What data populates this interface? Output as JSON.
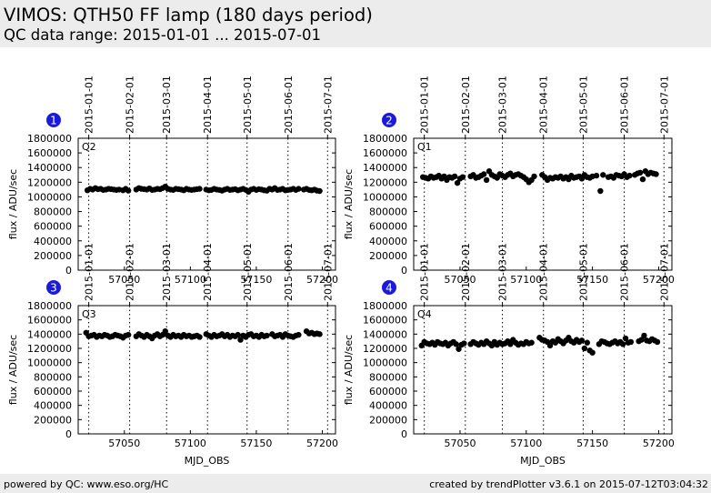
{
  "header": {
    "title": "VIMOS: QTH50 FF lamp (180 days period)",
    "subtitle": "QC data range: 2015-01-01 ... 2015-07-01"
  },
  "footer": {
    "left": "powered by QC: www.eso.org/HC",
    "right": "created by trendPlotter v3.6.1 on 2015-07-12T03:04:32"
  },
  "colors": {
    "badge": "#1a1adc",
    "points": "#000000",
    "header_bg": "#ececec"
  },
  "chart_data": [
    {
      "type": "scatter",
      "badge": "1",
      "quadrant_label": "Q2",
      "xlabel": "",
      "ylabel": "flux / ADU/sec",
      "xlim": [
        57015,
        57210
      ],
      "ylim": [
        0,
        1800000
      ],
      "x_ticks": [
        57050,
        57100,
        57150,
        57200
      ],
      "y_ticks": [
        0,
        200000,
        400000,
        600000,
        800000,
        1000000,
        1200000,
        1400000,
        1600000,
        1800000
      ],
      "date_marks": [
        {
          "label": "2015-01-01",
          "mjd": 57023
        },
        {
          "label": "2015-02-01",
          "mjd": 57054
        },
        {
          "label": "2015-03-01",
          "mjd": 57082
        },
        {
          "label": "2015-04-01",
          "mjd": 57113
        },
        {
          "label": "2015-05-01",
          "mjd": 57143
        },
        {
          "label": "2015-06-01",
          "mjd": 57174
        },
        {
          "label": "2015-07-01",
          "mjd": 57204
        }
      ],
      "series": [
        {
          "x": [
            57022,
            57024,
            57026,
            57028,
            57030,
            57032,
            57034,
            57036,
            57038,
            57040,
            57042,
            57044,
            57046,
            57049,
            57051,
            57053,
            57059,
            57061,
            57063,
            57065,
            57067,
            57069,
            57071,
            57073,
            57075,
            57077,
            57079,
            57081,
            57083,
            57085,
            57087,
            57089,
            57091,
            57093,
            57095,
            57097,
            57099,
            57101,
            57103,
            57105,
            57107,
            57112,
            57114,
            57116,
            57118,
            57120,
            57122,
            57124,
            57126,
            57128,
            57130,
            57132,
            57134,
            57136,
            57138,
            57140,
            57142,
            57144,
            57146,
            57148,
            57150,
            57152,
            57154,
            57156,
            57158,
            57160,
            57162,
            57164,
            57166,
            57168,
            57170,
            57172,
            57174,
            57176,
            57178,
            57180,
            57182,
            57186,
            57188,
            57190,
            57192,
            57194,
            57196,
            57198
          ],
          "y": [
            1090000,
            1110000,
            1100000,
            1120000,
            1105000,
            1110000,
            1095000,
            1100000,
            1110000,
            1105000,
            1100000,
            1095000,
            1100000,
            1090000,
            1110000,
            1085000,
            1100000,
            1120000,
            1110000,
            1105000,
            1100000,
            1115000,
            1095000,
            1100000,
            1110000,
            1105000,
            1120000,
            1140000,
            1110000,
            1100000,
            1095000,
            1110000,
            1105000,
            1100000,
            1090000,
            1110000,
            1100000,
            1095000,
            1100000,
            1105000,
            1110000,
            1100000,
            1090000,
            1095000,
            1110000,
            1100000,
            1095000,
            1085000,
            1100000,
            1110000,
            1095000,
            1100000,
            1105000,
            1090000,
            1100000,
            1110000,
            1095000,
            1070000,
            1100000,
            1110000,
            1095000,
            1105000,
            1100000,
            1090000,
            1085000,
            1110000,
            1100000,
            1120000,
            1095000,
            1100000,
            1110000,
            1090000,
            1095000,
            1100000,
            1110000,
            1095000,
            1110000,
            1100000,
            1110000,
            1095000,
            1090000,
            1100000,
            1085000,
            1080000
          ]
        }
      ]
    },
    {
      "type": "scatter",
      "badge": "2",
      "quadrant_label": "Q1",
      "xlabel": "",
      "ylabel": "flux / ADU/sec",
      "xlim": [
        57015,
        57210
      ],
      "ylim": [
        0,
        1800000
      ],
      "x_ticks": [
        57050,
        57100,
        57150,
        57200
      ],
      "y_ticks": [
        0,
        200000,
        400000,
        600000,
        800000,
        1000000,
        1200000,
        1400000,
        1600000,
        1800000
      ],
      "date_marks": [
        {
          "label": "2015-01-01",
          "mjd": 57023
        },
        {
          "label": "2015-02-01",
          "mjd": 57054
        },
        {
          "label": "2015-03-01",
          "mjd": 57082
        },
        {
          "label": "2015-04-01",
          "mjd": 57113
        },
        {
          "label": "2015-05-01",
          "mjd": 57143
        },
        {
          "label": "2015-06-01",
          "mjd": 57174
        },
        {
          "label": "2015-07-01",
          "mjd": 57204
        }
      ],
      "series": [
        {
          "x": [
            57022,
            57024,
            57026,
            57028,
            57030,
            57032,
            57034,
            57036,
            57038,
            57040,
            57042,
            57044,
            57046,
            57048,
            57050,
            57052,
            57058,
            57060,
            57062,
            57064,
            57066,
            57068,
            57070,
            57072,
            57074,
            57076,
            57078,
            57080,
            57082,
            57084,
            57086,
            57088,
            57090,
            57092,
            57094,
            57096,
            57098,
            57100,
            57102,
            57104,
            57106,
            57112,
            57114,
            57116,
            57118,
            57120,
            57122,
            57124,
            57126,
            57128,
            57130,
            57132,
            57134,
            57136,
            57138,
            57140,
            57142,
            57144,
            57146,
            57148,
            57150,
            57153,
            57156,
            57158,
            57162,
            57164,
            57166,
            57168,
            57170,
            57172,
            57174,
            57176,
            57178,
            57182,
            57184,
            57186,
            57188,
            57190,
            57192,
            57194,
            57196,
            57198
          ],
          "y": [
            1270000,
            1260000,
            1250000,
            1280000,
            1260000,
            1270000,
            1290000,
            1250000,
            1280000,
            1230000,
            1270000,
            1260000,
            1280000,
            1190000,
            1250000,
            1270000,
            1280000,
            1300000,
            1260000,
            1270000,
            1290000,
            1310000,
            1230000,
            1350000,
            1300000,
            1280000,
            1260000,
            1310000,
            1290000,
            1270000,
            1300000,
            1320000,
            1280000,
            1300000,
            1310000,
            1290000,
            1270000,
            1240000,
            1200000,
            1230000,
            1280000,
            1300000,
            1270000,
            1230000,
            1260000,
            1250000,
            1270000,
            1260000,
            1280000,
            1250000,
            1270000,
            1240000,
            1290000,
            1260000,
            1270000,
            1280000,
            1250000,
            1300000,
            1270000,
            1260000,
            1280000,
            1290000,
            1080000,
            1300000,
            1270000,
            1280000,
            1260000,
            1300000,
            1290000,
            1280000,
            1310000,
            1270000,
            1290000,
            1300000,
            1320000,
            1330000,
            1240000,
            1350000,
            1310000,
            1330000,
            1320000,
            1310000
          ]
        }
      ]
    },
    {
      "type": "scatter",
      "badge": "3",
      "quadrant_label": "Q3",
      "xlabel": "MJD_OBS",
      "ylabel": "flux / ADU/sec",
      "xlim": [
        57015,
        57210
      ],
      "ylim": [
        0,
        1800000
      ],
      "x_ticks": [
        57050,
        57100,
        57150,
        57200
      ],
      "y_ticks": [
        0,
        200000,
        400000,
        600000,
        800000,
        1000000,
        1200000,
        1400000,
        1600000,
        1800000
      ],
      "date_marks": [
        {
          "label": "2015-01-01",
          "mjd": 57023
        },
        {
          "label": "2015-02-01",
          "mjd": 57054
        },
        {
          "label": "2015-03-01",
          "mjd": 57082
        },
        {
          "label": "2015-04-01",
          "mjd": 57113
        },
        {
          "label": "2015-05-01",
          "mjd": 57143
        },
        {
          "label": "2015-06-01",
          "mjd": 57174
        },
        {
          "label": "2015-07-01",
          "mjd": 57204
        }
      ],
      "series": [
        {
          "x": [
            57021,
            57023,
            57025,
            57027,
            57029,
            57031,
            57033,
            57035,
            57037,
            57039,
            57041,
            57043,
            57045,
            57047,
            57049,
            57051,
            57053,
            57059,
            57061,
            57063,
            57065,
            57067,
            57069,
            57071,
            57073,
            57075,
            57077,
            57079,
            57081,
            57083,
            57085,
            57087,
            57089,
            57091,
            57093,
            57095,
            57097,
            57099,
            57101,
            57103,
            57105,
            57107,
            57112,
            57114,
            57116,
            57118,
            57120,
            57122,
            57124,
            57126,
            57128,
            57130,
            57132,
            57134,
            57136,
            57138,
            57140,
            57142,
            57144,
            57146,
            57148,
            57150,
            57152,
            57154,
            57156,
            57158,
            57162,
            57164,
            57166,
            57168,
            57170,
            57172,
            57174,
            57176,
            57178,
            57180,
            57182,
            57188,
            57190,
            57192,
            57194,
            57196,
            57198
          ],
          "y": [
            1420000,
            1370000,
            1380000,
            1390000,
            1360000,
            1380000,
            1370000,
            1390000,
            1380000,
            1360000,
            1370000,
            1390000,
            1380000,
            1370000,
            1350000,
            1380000,
            1390000,
            1370000,
            1400000,
            1380000,
            1360000,
            1390000,
            1370000,
            1340000,
            1380000,
            1400000,
            1370000,
            1390000,
            1440000,
            1380000,
            1360000,
            1390000,
            1370000,
            1380000,
            1360000,
            1390000,
            1370000,
            1380000,
            1360000,
            1370000,
            1380000,
            1360000,
            1400000,
            1380000,
            1360000,
            1390000,
            1370000,
            1380000,
            1400000,
            1370000,
            1390000,
            1360000,
            1380000,
            1370000,
            1390000,
            1320000,
            1380000,
            1360000,
            1390000,
            1400000,
            1370000,
            1380000,
            1360000,
            1390000,
            1370000,
            1380000,
            1400000,
            1370000,
            1380000,
            1390000,
            1360000,
            1400000,
            1380000,
            1370000,
            1360000,
            1380000,
            1390000,
            1440000,
            1410000,
            1420000,
            1400000,
            1410000,
            1400000
          ]
        }
      ]
    },
    {
      "type": "scatter",
      "badge": "4",
      "quadrant_label": "Q4",
      "xlabel": "MJD_OBS",
      "ylabel": "flux / ADU/sec",
      "xlim": [
        57015,
        57210
      ],
      "ylim": [
        0,
        1800000
      ],
      "x_ticks": [
        57050,
        57100,
        57150,
        57200
      ],
      "y_ticks": [
        0,
        200000,
        400000,
        600000,
        800000,
        1000000,
        1200000,
        1400000,
        1600000,
        1800000
      ],
      "date_marks": [
        {
          "label": "2015-01-01",
          "mjd": 57023
        },
        {
          "label": "2015-02-01",
          "mjd": 57054
        },
        {
          "label": "2015-03-01",
          "mjd": 57082
        },
        {
          "label": "2015-04-01",
          "mjd": 57113
        },
        {
          "label": "2015-05-01",
          "mjd": 57143
        },
        {
          "label": "2015-06-01",
          "mjd": 57174
        },
        {
          "label": "2015-07-01",
          "mjd": 57204
        }
      ],
      "series": [
        {
          "x": [
            57021,
            57023,
            57025,
            57027,
            57029,
            57031,
            57033,
            57035,
            57037,
            57039,
            57041,
            57043,
            57045,
            57047,
            57049,
            57051,
            57053,
            57058,
            57060,
            57062,
            57064,
            57066,
            57068,
            57070,
            57072,
            57074,
            57076,
            57078,
            57080,
            57082,
            57084,
            57086,
            57088,
            57090,
            57092,
            57094,
            57096,
            57098,
            57100,
            57102,
            57104,
            57110,
            57112,
            57114,
            57116,
            57118,
            57120,
            57122,
            57124,
            57126,
            57128,
            57130,
            57132,
            57134,
            57136,
            57138,
            57140,
            57142,
            57144,
            57146,
            57148,
            57150,
            57155,
            57157,
            57159,
            57161,
            57163,
            57165,
            57167,
            57169,
            57171,
            57173,
            57175,
            57177,
            57179,
            57185,
            57187,
            57189,
            57191,
            57193,
            57195,
            57197,
            57199
          ],
          "y": [
            1240000,
            1290000,
            1270000,
            1260000,
            1280000,
            1250000,
            1290000,
            1270000,
            1260000,
            1280000,
            1240000,
            1270000,
            1290000,
            1260000,
            1190000,
            1250000,
            1270000,
            1260000,
            1290000,
            1270000,
            1250000,
            1280000,
            1260000,
            1300000,
            1270000,
            1240000,
            1290000,
            1250000,
            1280000,
            1260000,
            1270000,
            1300000,
            1260000,
            1320000,
            1280000,
            1250000,
            1270000,
            1260000,
            1290000,
            1270000,
            1280000,
            1350000,
            1320000,
            1310000,
            1290000,
            1240000,
            1300000,
            1280000,
            1330000,
            1300000,
            1270000,
            1310000,
            1350000,
            1300000,
            1280000,
            1320000,
            1290000,
            1310000,
            1200000,
            1280000,
            1170000,
            1140000,
            1260000,
            1300000,
            1290000,
            1270000,
            1260000,
            1280000,
            1300000,
            1270000,
            1290000,
            1260000,
            1340000,
            1280000,
            1290000,
            1300000,
            1320000,
            1380000,
            1310000,
            1300000,
            1330000,
            1310000,
            1290000
          ]
        }
      ]
    }
  ]
}
